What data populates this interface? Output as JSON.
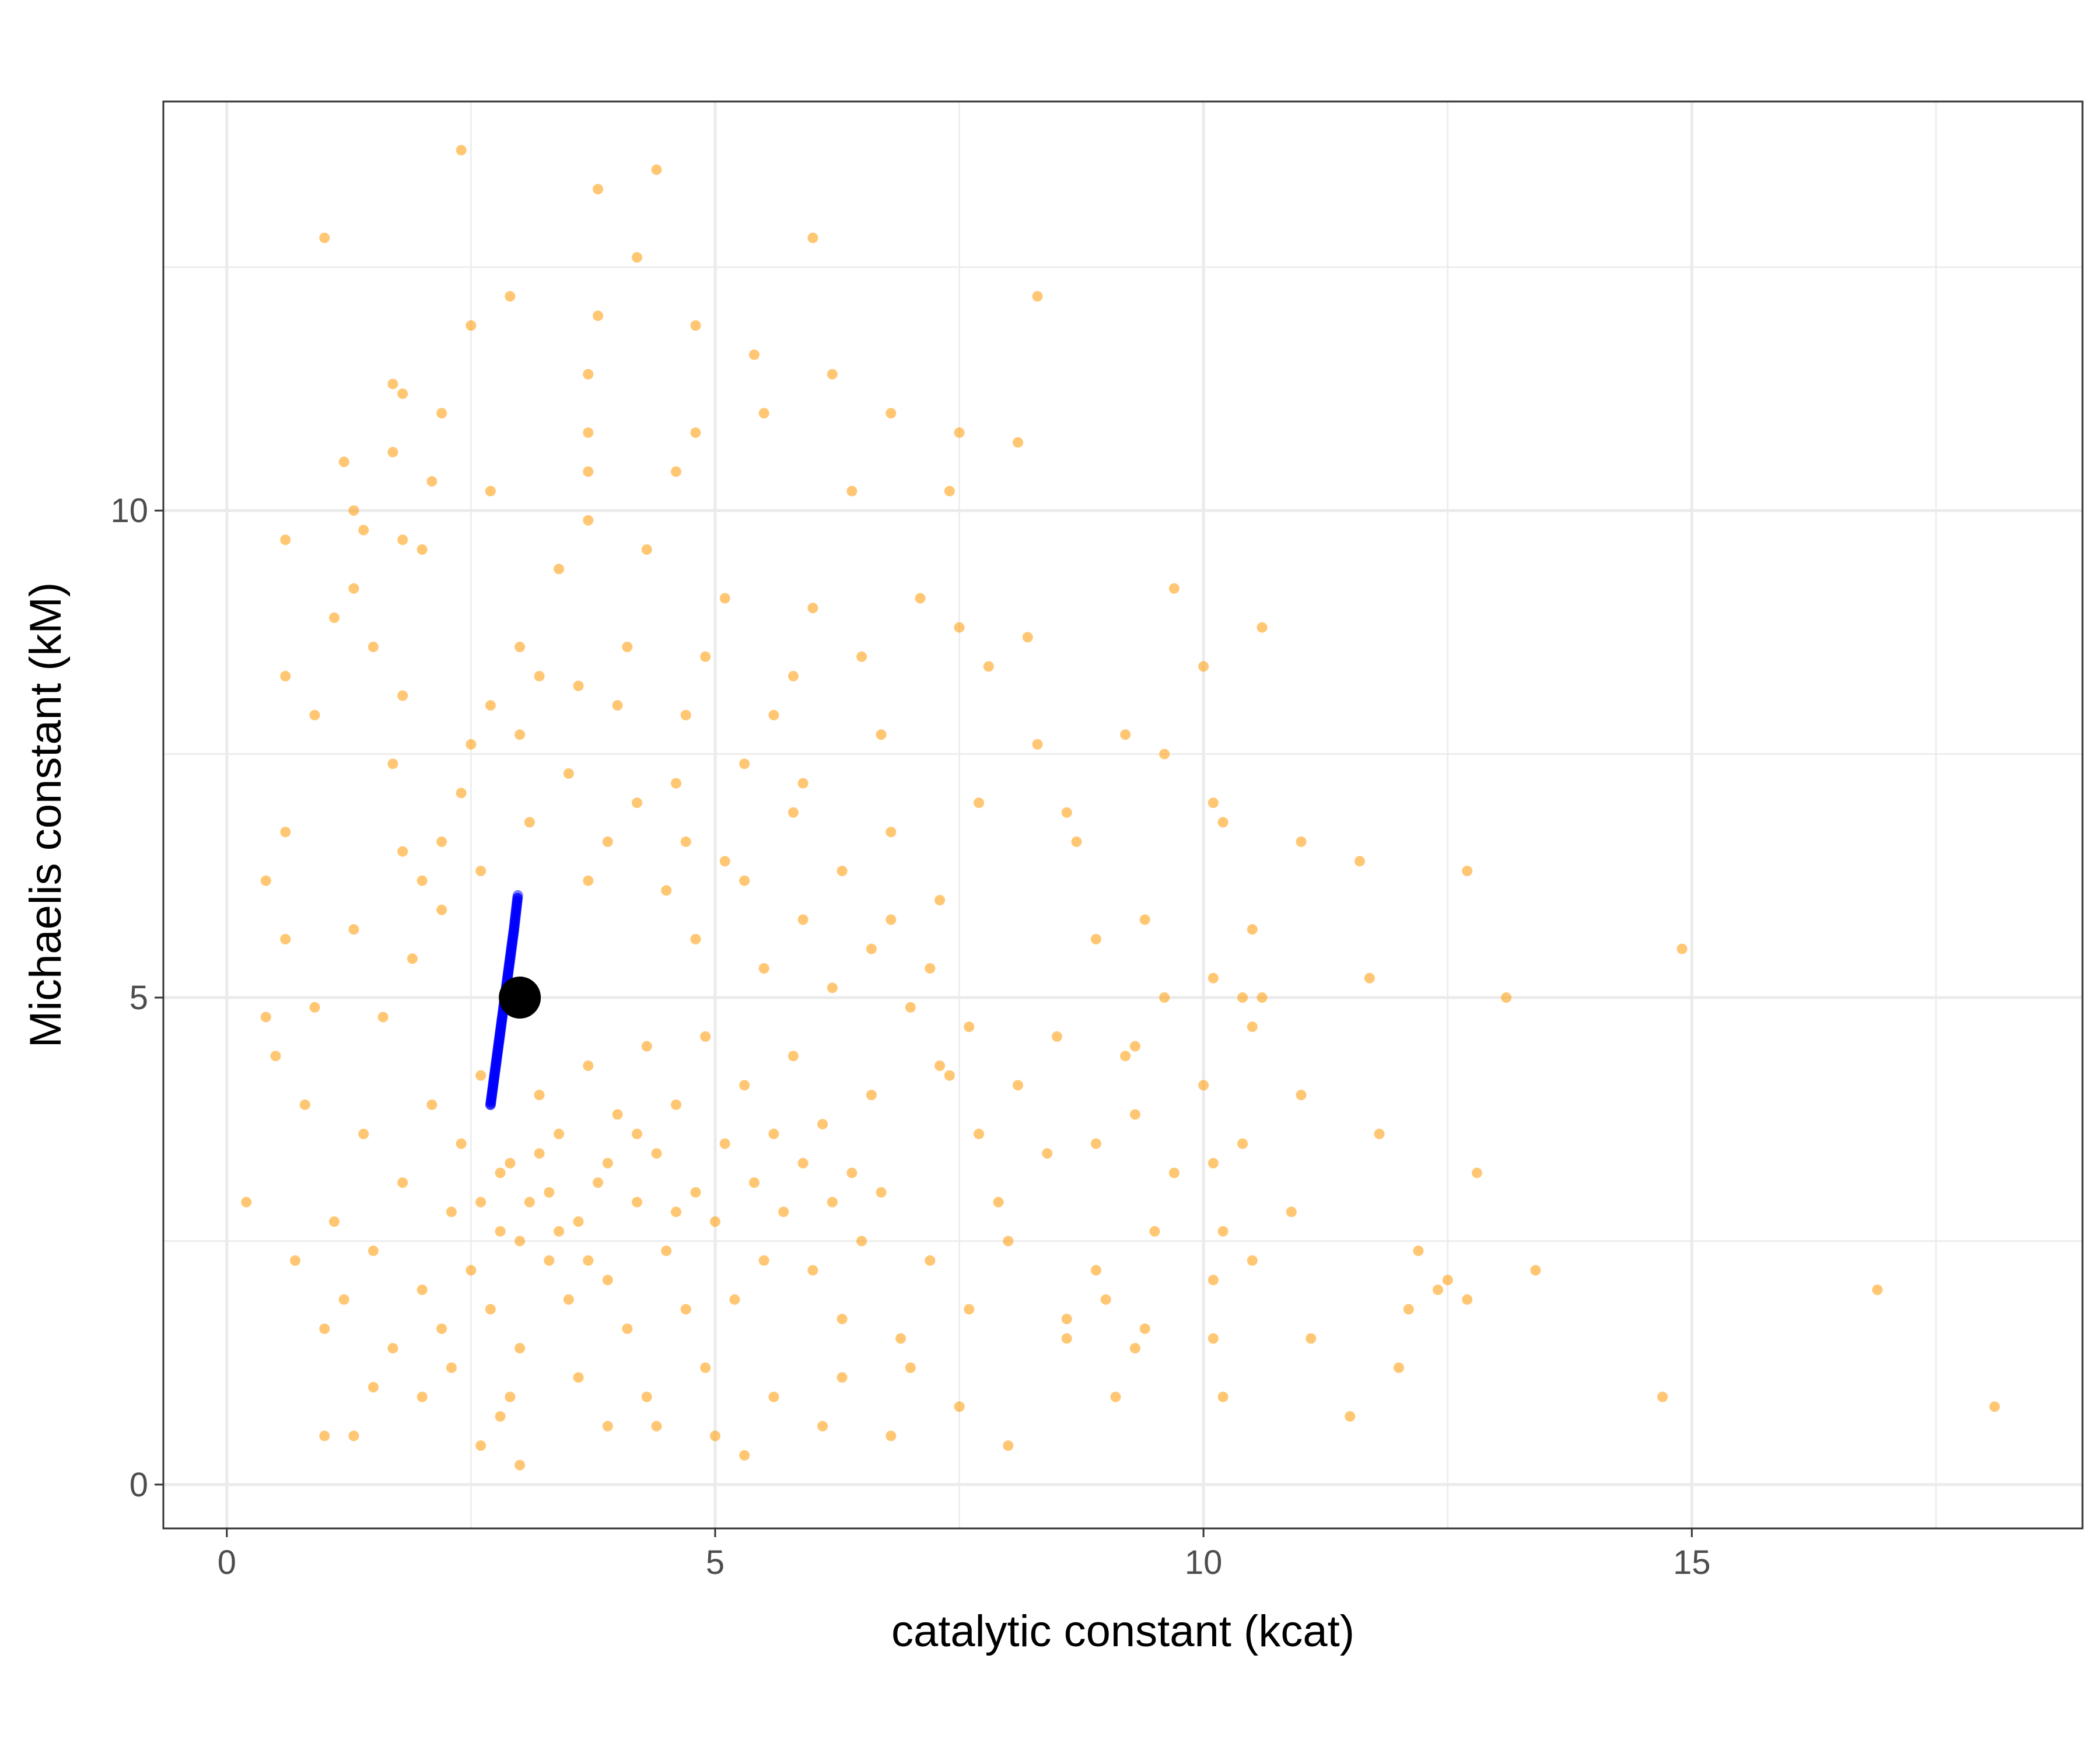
{
  "chart_data": {
    "type": "scatter",
    "title": "",
    "xlabel": "catalytic constant (kcat)",
    "ylabel": "Michaelis constant (kM)",
    "xlim": [
      -0.65,
      19.0
    ],
    "ylim": [
      -0.45,
      14.2
    ],
    "x_ticks": [
      0,
      5,
      10,
      15
    ],
    "y_ticks": [
      0,
      5,
      10
    ],
    "x_tick_labels": [
      "0",
      "5",
      "10",
      "15"
    ],
    "y_tick_labels": [
      "0",
      "5",
      "10"
    ],
    "grid": true,
    "legend": "none",
    "colors": {
      "scatter": "#ff9900",
      "trace": "#0000ff",
      "estimate": "#000000",
      "grid": "#ebebeb",
      "panel_border": "#333333"
    },
    "series": [
      {
        "kind": "scatter",
        "points": [
          [
            2.4,
            13.7
          ],
          [
            4.4,
            13.5
          ],
          [
            3.8,
            13.3
          ],
          [
            1.0,
            12.8
          ],
          [
            6.0,
            12.8
          ],
          [
            4.2,
            12.6
          ],
          [
            2.9,
            12.2
          ],
          [
            8.3,
            12.2
          ],
          [
            3.8,
            12.0
          ],
          [
            2.5,
            11.9
          ],
          [
            4.8,
            11.9
          ],
          [
            5.4,
            11.6
          ],
          [
            3.7,
            11.4
          ],
          [
            6.2,
            11.4
          ],
          [
            1.7,
            11.3
          ],
          [
            1.8,
            11.2
          ],
          [
            2.2,
            11.0
          ],
          [
            5.5,
            11.0
          ],
          [
            6.8,
            11.0
          ],
          [
            3.7,
            10.8
          ],
          [
            4.8,
            10.8
          ],
          [
            7.5,
            10.8
          ],
          [
            8.1,
            10.7
          ],
          [
            1.2,
            10.5
          ],
          [
            1.7,
            10.6
          ],
          [
            3.7,
            10.4
          ],
          [
            4.6,
            10.4
          ],
          [
            2.1,
            10.3
          ],
          [
            2.7,
            10.2
          ],
          [
            6.4,
            10.2
          ],
          [
            7.4,
            10.2
          ],
          [
            1.3,
            10.0
          ],
          [
            3.7,
            9.9
          ],
          [
            1.4,
            9.8
          ],
          [
            0.6,
            9.7
          ],
          [
            1.8,
            9.7
          ],
          [
            2.0,
            9.6
          ],
          [
            4.3,
            9.6
          ],
          [
            3.4,
            9.4
          ],
          [
            1.3,
            9.2
          ],
          [
            5.1,
            9.1
          ],
          [
            6.0,
            9.0
          ],
          [
            7.1,
            9.1
          ],
          [
            9.7,
            9.2
          ],
          [
            10.6,
            8.8
          ],
          [
            7.5,
            8.8
          ],
          [
            1.1,
            8.9
          ],
          [
            8.2,
            8.7
          ],
          [
            1.5,
            8.6
          ],
          [
            3.0,
            8.6
          ],
          [
            4.9,
            8.5
          ],
          [
            6.5,
            8.5
          ],
          [
            10.0,
            8.4
          ],
          [
            0.6,
            8.3
          ],
          [
            3.2,
            8.3
          ],
          [
            5.8,
            8.3
          ],
          [
            7.8,
            8.4
          ],
          [
            1.8,
            8.1
          ],
          [
            2.7,
            8.0
          ],
          [
            4.0,
            8.0
          ],
          [
            0.9,
            7.9
          ],
          [
            5.6,
            7.9
          ],
          [
            6.7,
            7.7
          ],
          [
            9.2,
            7.7
          ],
          [
            2.5,
            7.6
          ],
          [
            8.3,
            7.6
          ],
          [
            9.6,
            7.5
          ],
          [
            1.7,
            7.4
          ],
          [
            4.6,
            7.2
          ],
          [
            5.9,
            7.2
          ],
          [
            7.7,
            7.0
          ],
          [
            10.1,
            7.0
          ],
          [
            10.2,
            6.8
          ],
          [
            8.6,
            6.9
          ],
          [
            0.6,
            6.7
          ],
          [
            2.2,
            6.6
          ],
          [
            4.7,
            6.6
          ],
          [
            6.8,
            6.7
          ],
          [
            11.0,
            6.6
          ],
          [
            8.7,
            6.6
          ],
          [
            11.6,
            6.4
          ],
          [
            12.7,
            6.3
          ],
          [
            0.4,
            6.2
          ],
          [
            2.0,
            6.2
          ],
          [
            3.7,
            6.2
          ],
          [
            5.3,
            6.2
          ],
          [
            7.3,
            6.0
          ],
          [
            9.4,
            5.8
          ],
          [
            10.5,
            5.7
          ],
          [
            0.6,
            5.6
          ],
          [
            8.9,
            5.6
          ],
          [
            10.1,
            5.2
          ],
          [
            11.7,
            5.2
          ],
          [
            14.9,
            5.5
          ],
          [
            13.1,
            5.0
          ],
          [
            9.6,
            5.0
          ],
          [
            10.6,
            5.0
          ],
          [
            10.4,
            5.0
          ],
          [
            0.4,
            4.8
          ],
          [
            8.5,
            4.6
          ],
          [
            10.5,
            4.7
          ],
          [
            9.3,
            4.5
          ],
          [
            9.2,
            4.4
          ],
          [
            0.5,
            4.4
          ],
          [
            7.3,
            4.3
          ],
          [
            10.0,
            4.1
          ],
          [
            11.0,
            4.0
          ],
          [
            9.3,
            3.8
          ],
          [
            11.8,
            3.6
          ],
          [
            8.9,
            3.5
          ],
          [
            10.4,
            3.5
          ],
          [
            10.1,
            3.3
          ],
          [
            9.7,
            3.2
          ],
          [
            12.8,
            3.2
          ],
          [
            0.2,
            2.9
          ],
          [
            10.9,
            2.8
          ],
          [
            9.5,
            2.6
          ],
          [
            10.2,
            2.6
          ],
          [
            12.2,
            2.4
          ],
          [
            10.5,
            2.3
          ],
          [
            8.9,
            2.2
          ],
          [
            10.1,
            2.1
          ],
          [
            13.4,
            2.2
          ],
          [
            12.5,
            2.1
          ],
          [
            12.4,
            2.0
          ],
          [
            12.7,
            1.9
          ],
          [
            16.9,
            2.0
          ],
          [
            9.0,
            1.9
          ],
          [
            12.1,
            1.8
          ],
          [
            8.6,
            1.7
          ],
          [
            9.4,
            1.6
          ],
          [
            8.6,
            1.5
          ],
          [
            10.1,
            1.5
          ],
          [
            11.1,
            1.5
          ],
          [
            9.3,
            1.4
          ],
          [
            12.0,
            1.2
          ],
          [
            10.2,
            0.9
          ],
          [
            9.1,
            0.9
          ],
          [
            14.7,
            0.9
          ],
          [
            18.1,
            0.8
          ],
          [
            11.5,
            0.7
          ],
          [
            7.5,
            0.8
          ],
          [
            8.0,
            0.4
          ],
          [
            6.8,
            0.5
          ],
          [
            5.3,
            0.3
          ],
          [
            3.0,
            0.2
          ],
          [
            2.6,
            0.4
          ],
          [
            1.0,
            0.5
          ],
          [
            1.3,
            0.5
          ],
          [
            4.4,
            0.6
          ],
          [
            1.5,
            2.4
          ],
          [
            1.8,
            3.1
          ],
          [
            2.0,
            2.0
          ],
          [
            2.1,
            3.9
          ],
          [
            2.2,
            1.6
          ],
          [
            2.3,
            2.8
          ],
          [
            2.4,
            3.5
          ],
          [
            2.5,
            2.2
          ],
          [
            2.6,
            4.2
          ],
          [
            2.7,
            1.8
          ],
          [
            2.8,
            2.6
          ],
          [
            2.9,
            3.3
          ],
          [
            3.0,
            1.4
          ],
          [
            3.1,
            2.9
          ],
          [
            3.2,
            4.0
          ],
          [
            3.3,
            2.3
          ],
          [
            3.4,
            3.6
          ],
          [
            3.5,
            1.9
          ],
          [
            3.6,
            2.7
          ],
          [
            3.7,
            4.3
          ],
          [
            3.8,
            3.1
          ],
          [
            3.9,
            2.1
          ],
          [
            4.0,
            3.8
          ],
          [
            4.1,
            1.6
          ],
          [
            4.2,
            2.9
          ],
          [
            4.3,
            4.5
          ],
          [
            4.4,
            3.4
          ],
          [
            4.5,
            2.4
          ],
          [
            4.6,
            3.9
          ],
          [
            4.7,
            1.8
          ],
          [
            4.8,
            3.0
          ],
          [
            4.9,
            4.6
          ],
          [
            5.0,
            2.7
          ],
          [
            5.1,
            3.5
          ],
          [
            5.2,
            1.9
          ],
          [
            5.3,
            4.1
          ],
          [
            5.4,
            3.1
          ],
          [
            5.5,
            2.3
          ],
          [
            5.6,
            3.6
          ],
          [
            5.7,
            2.8
          ],
          [
            5.8,
            4.4
          ],
          [
            5.9,
            3.3
          ],
          [
            6.0,
            2.2
          ],
          [
            6.1,
            3.7
          ],
          [
            6.2,
            2.9
          ],
          [
            6.3,
            1.7
          ],
          [
            6.4,
            3.2
          ],
          [
            6.5,
            2.5
          ],
          [
            6.6,
            4.0
          ],
          [
            6.7,
            3.0
          ],
          [
            1.2,
            1.9
          ],
          [
            1.4,
            3.6
          ],
          [
            1.6,
            4.8
          ],
          [
            1.9,
            5.4
          ],
          [
            2.2,
            5.9
          ],
          [
            2.6,
            6.3
          ],
          [
            3.1,
            6.8
          ],
          [
            3.5,
            7.3
          ],
          [
            3.9,
            6.6
          ],
          [
            4.2,
            7.0
          ],
          [
            4.5,
            6.1
          ],
          [
            4.8,
            5.6
          ],
          [
            5.1,
            6.4
          ],
          [
            5.5,
            5.3
          ],
          [
            5.9,
            5.8
          ],
          [
            6.2,
            5.1
          ],
          [
            6.6,
            5.5
          ],
          [
            7.0,
            4.9
          ],
          [
            7.4,
            4.2
          ],
          [
            7.7,
            3.6
          ],
          [
            7.9,
            2.9
          ],
          [
            7.2,
            2.3
          ],
          [
            6.9,
            1.5
          ],
          [
            6.3,
            1.1
          ],
          [
            5.6,
            0.9
          ],
          [
            4.9,
            1.2
          ],
          [
            4.3,
            0.9
          ],
          [
            3.6,
            1.1
          ],
          [
            2.9,
            0.9
          ],
          [
            2.3,
            1.2
          ],
          [
            1.7,
            1.4
          ],
          [
            1.1,
            2.7
          ],
          [
            0.8,
            3.9
          ],
          [
            0.9,
            4.9
          ],
          [
            1.3,
            5.7
          ],
          [
            1.8,
            6.5
          ],
          [
            2.4,
            7.1
          ],
          [
            3.0,
            7.7
          ],
          [
            3.6,
            8.2
          ],
          [
            4.1,
            8.6
          ],
          [
            4.7,
            7.9
          ],
          [
            5.3,
            7.4
          ],
          [
            5.8,
            6.9
          ],
          [
            6.3,
            6.3
          ],
          [
            6.8,
            5.8
          ],
          [
            7.2,
            5.3
          ],
          [
            7.6,
            4.7
          ],
          [
            8.1,
            4.1
          ],
          [
            8.4,
            3.4
          ],
          [
            8.0,
            2.5
          ],
          [
            7.6,
            1.8
          ],
          [
            7.0,
            1.2
          ],
          [
            6.1,
            0.6
          ],
          [
            5.0,
            0.5
          ],
          [
            3.9,
            0.6
          ],
          [
            2.8,
            0.7
          ],
          [
            2.0,
            0.9
          ],
          [
            1.5,
            1.0
          ],
          [
            1.0,
            1.6
          ],
          [
            0.7,
            2.3
          ],
          [
            3.3,
            3.0
          ],
          [
            3.4,
            2.6
          ],
          [
            2.8,
            3.2
          ],
          [
            3.7,
            2.3
          ],
          [
            4.2,
            3.6
          ],
          [
            3.0,
            2.5
          ],
          [
            2.6,
            2.9
          ],
          [
            3.9,
            3.3
          ],
          [
            4.6,
            2.8
          ],
          [
            3.2,
            3.4
          ]
        ]
      },
      {
        "kind": "trace",
        "points": [
          [
            2.7,
            3.9
          ],
          [
            2.74,
            4.2
          ],
          [
            2.78,
            4.5
          ],
          [
            2.82,
            4.8
          ],
          [
            2.86,
            5.1
          ],
          [
            2.9,
            5.4
          ],
          [
            2.94,
            5.7
          ],
          [
            2.98,
            6.05
          ]
        ]
      },
      {
        "kind": "estimate",
        "points": [
          [
            3.0,
            5.0
          ]
        ]
      }
    ]
  }
}
